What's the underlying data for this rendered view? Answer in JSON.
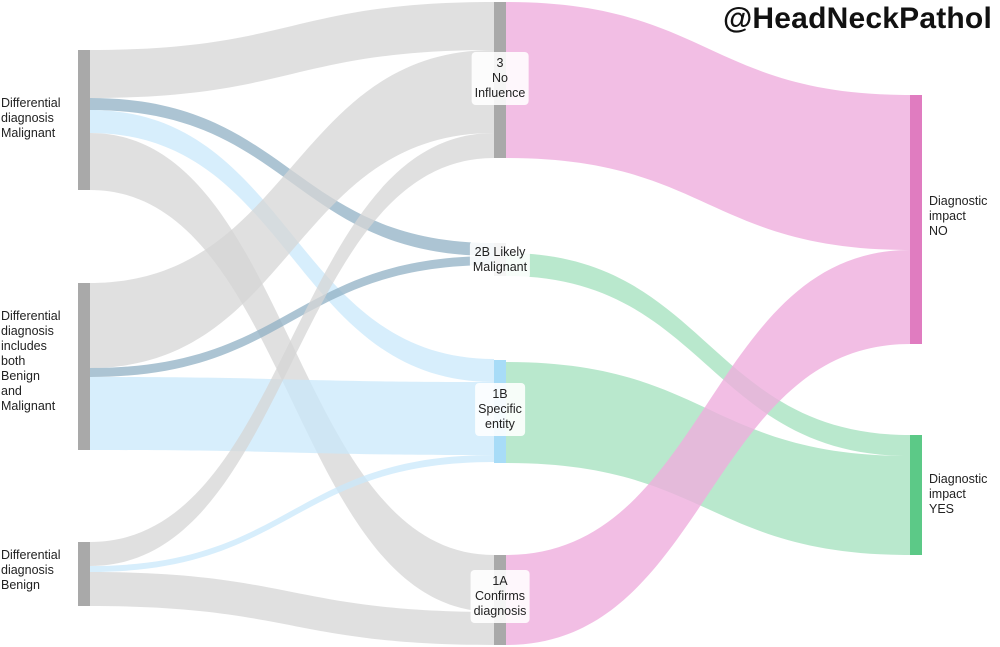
{
  "watermark": "@HeadNeckPathol",
  "colors": {
    "node": "#a9a9a9",
    "link_gray": "#d6d6d6",
    "link_blue": "#c9e8fb",
    "link_steel": "#90b0c4",
    "link_pink": "#efaedd",
    "link_green": "#a8e2c0",
    "node_no": "#e07cc0",
    "node_yes": "#5cc987",
    "node_1b": "#a8dcf7"
  },
  "nodes": {
    "ddx_malignant": "Differential\ndiagnosis\nMalignant",
    "ddx_both": "Differential\ndiagnosis\nincludes\nboth\nBenign\nand\nMalignant",
    "ddx_benign": "Differential\ndiagnosis\nBenign",
    "n3": "3\nNo\nInfluence",
    "n2b": "2B Likely\nMalignant",
    "n1b": "1B\nSpecific\nentity",
    "n1a": "1A\nConfirms\ndiagnosis",
    "impact_no": "Diagnostic\nimpact\nNO",
    "impact_yes": "Diagnostic\nimpact\nYES"
  }
}
